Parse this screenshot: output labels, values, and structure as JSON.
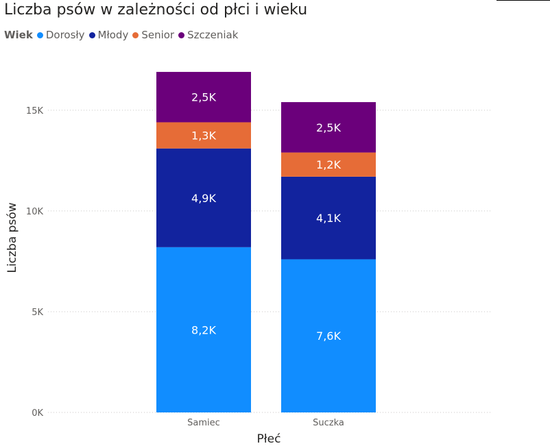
{
  "chart_data": {
    "type": "bar",
    "stacked": true,
    "title": "Liczba psów w zależności od płci i wieku",
    "xlabel": "Płeć",
    "ylabel": "Liczba psów",
    "categories": [
      "Samiec",
      "Suczka"
    ],
    "ylim": [
      0,
      17000
    ],
    "yticks": [
      0,
      5000,
      10000,
      15000
    ],
    "ytick_labels": [
      "0K",
      "5K",
      "10K",
      "15K"
    ],
    "grid": true,
    "legend": {
      "title": "Wiek",
      "placement": "top-left",
      "entries": [
        "Dorosły",
        "Młody",
        "Senior",
        "Szczeniak"
      ]
    },
    "series": [
      {
        "name": "Dorosły",
        "color": "#118dff",
        "values": [
          8200,
          7600
        ],
        "labels": [
          "8,2K",
          "7,6K"
        ]
      },
      {
        "name": "Młody",
        "color": "#12239e",
        "values": [
          4900,
          4100
        ],
        "labels": [
          "4,9K",
          "4,1K"
        ]
      },
      {
        "name": "Senior",
        "color": "#e66c37",
        "values": [
          1300,
          1200
        ],
        "labels": [
          "1,3K",
          "1,2K"
        ]
      },
      {
        "name": "Szczeniak",
        "color": "#6b007b",
        "values": [
          2500,
          2500
        ],
        "labels": [
          "2,5K",
          "2,5K"
        ]
      }
    ]
  }
}
